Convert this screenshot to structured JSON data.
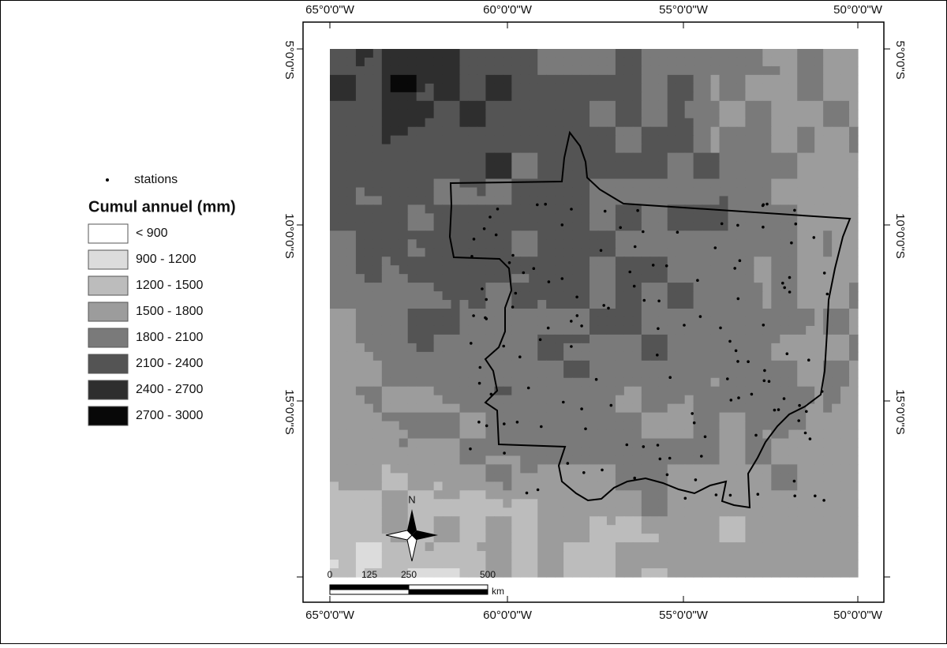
{
  "legend": {
    "stations_label": "stations",
    "title": "Cumul annuel (mm)",
    "classes": [
      {
        "label": "< 900",
        "color": "#ffffff"
      },
      {
        "label": "900 - 1200",
        "color": "#dcdcdc"
      },
      {
        "label": "1200 - 1500",
        "color": "#bcbcbc"
      },
      {
        "label": "1500 - 1800",
        "color": "#9c9c9c"
      },
      {
        "label": "1800 - 2100",
        "color": "#7a7a7a"
      },
      {
        "label": "2100 - 2400",
        "color": "#545454"
      },
      {
        "label": "2400 - 2700",
        "color": "#2e2e2e"
      },
      {
        "label": "2700 - 3000",
        "color": "#080808"
      }
    ]
  },
  "map": {
    "longitude_labels": [
      "65°0'0\"W",
      "60°0'0\"W",
      "55°0'0\"W",
      "50°0'0\"W"
    ],
    "latitude_labels": [
      "5°0'0\"S",
      "10°0'0\"S",
      "15°0'0\"S"
    ],
    "north_label": "N",
    "scale_bar": {
      "labels": [
        "0",
        "125",
        "250",
        "500"
      ],
      "unit": "km"
    }
  }
}
